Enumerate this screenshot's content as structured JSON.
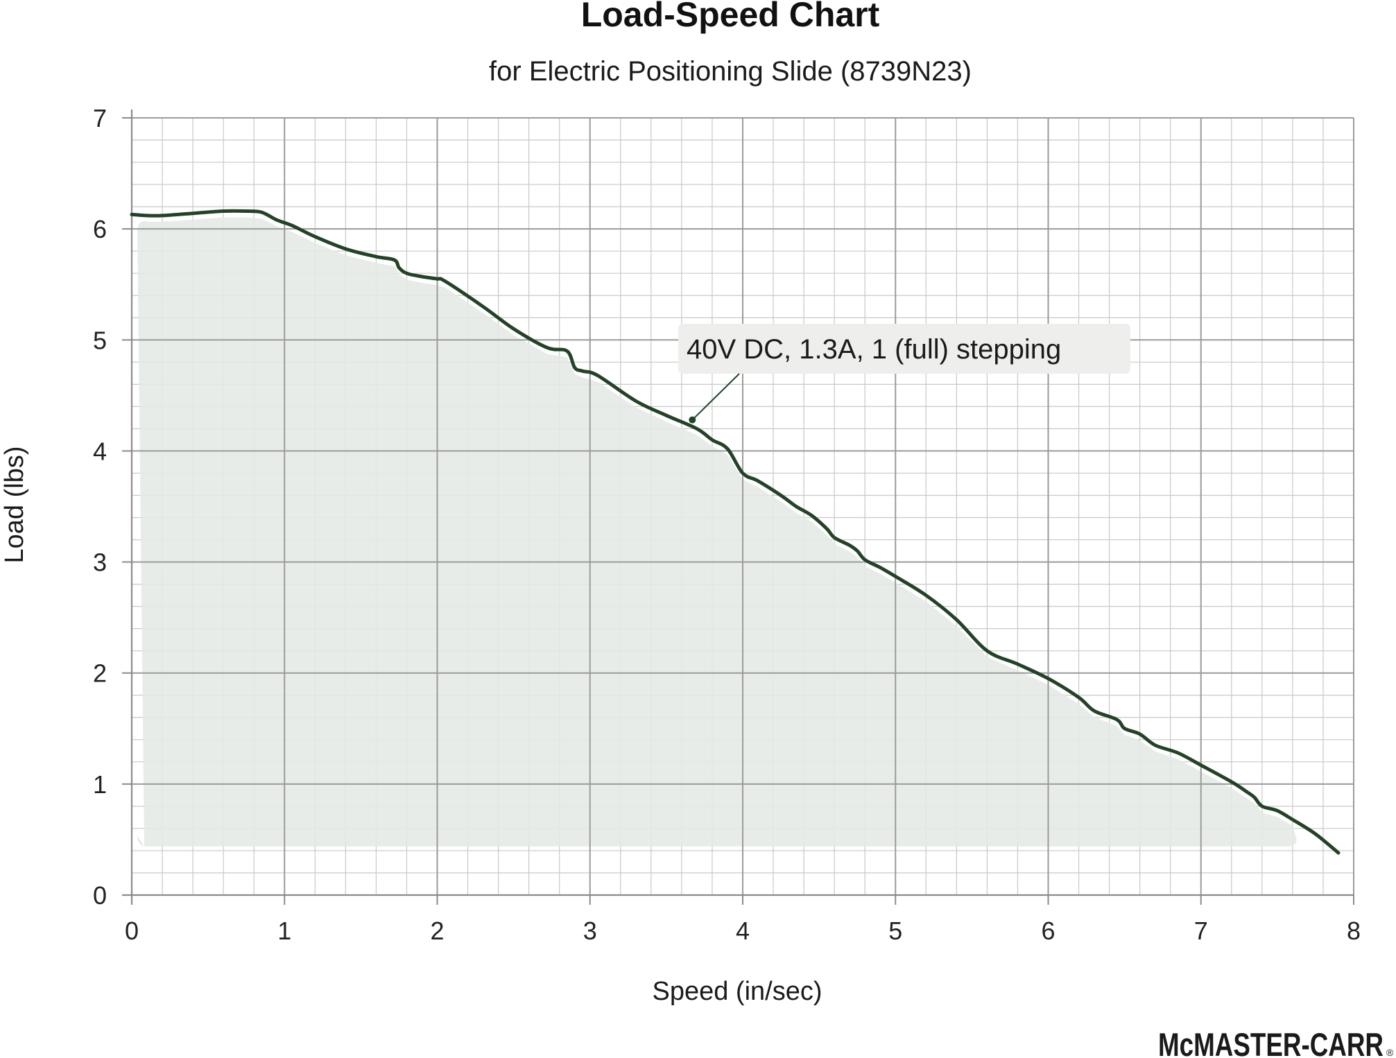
{
  "chart_data": {
    "type": "area",
    "title": "Load-Speed Chart",
    "subtitle": "for Electric Positioning Slide (8739N23)",
    "xlabel": "Speed (in/sec)",
    "ylabel": "Load (lbs)",
    "xlim": [
      0,
      8
    ],
    "ylim": [
      0,
      7
    ],
    "xticks": [
      0,
      1,
      2,
      3,
      4,
      5,
      6,
      7,
      8
    ],
    "yticks": [
      0,
      1,
      2,
      3,
      4,
      5,
      6,
      7
    ],
    "minor_grid_x_step": 0.2,
    "minor_grid_y_step": 0.2,
    "grid": true,
    "legend": "none",
    "series": [
      {
        "name": "40V DC, 1.3A, 1 (full) stepping",
        "x": [
          0,
          0.1,
          0.2,
          0.4,
          0.6,
          0.75,
          0.85,
          0.95,
          1.05,
          1.2,
          1.4,
          1.6,
          1.72,
          1.75,
          1.8,
          1.9,
          2.0,
          2.05,
          2.3,
          2.5,
          2.72,
          2.85,
          2.9,
          2.95,
          3.05,
          3.3,
          3.5,
          3.7,
          3.8,
          3.9,
          4.0,
          4.1,
          4.25,
          4.35,
          4.45,
          4.55,
          4.6,
          4.7,
          4.75,
          4.8,
          4.9,
          5.0,
          5.2,
          5.4,
          5.6,
          5.8,
          6.0,
          6.2,
          6.3,
          6.45,
          6.5,
          6.6,
          6.7,
          6.85,
          7.0,
          7.2,
          7.3,
          7.35,
          7.4,
          7.5,
          7.6,
          7.75,
          7.9
        ],
        "y": [
          6.13,
          6.12,
          6.12,
          6.14,
          6.16,
          6.16,
          6.15,
          6.08,
          6.03,
          5.93,
          5.82,
          5.75,
          5.72,
          5.65,
          5.6,
          5.57,
          5.55,
          5.53,
          5.3,
          5.1,
          4.93,
          4.9,
          4.75,
          4.72,
          4.68,
          4.45,
          4.32,
          4.2,
          4.1,
          4.02,
          3.8,
          3.73,
          3.6,
          3.5,
          3.42,
          3.3,
          3.22,
          3.15,
          3.1,
          3.02,
          2.95,
          2.87,
          2.7,
          2.48,
          2.2,
          2.08,
          1.95,
          1.78,
          1.66,
          1.58,
          1.5,
          1.45,
          1.35,
          1.28,
          1.17,
          1.02,
          0.93,
          0.88,
          0.8,
          0.76,
          0.68,
          0.55,
          0.38
        ],
        "color": "#234327"
      }
    ],
    "annotation": {
      "text": "40V DC, 1.3A, 1 (full) stepping",
      "point": [
        3.67,
        4.28
      ]
    },
    "colors": {
      "line": "#234327",
      "fill": "#e5e9e5",
      "major_grid": "#9a9a9a",
      "minor_grid": "#c8c8c8",
      "annotation_box": "#eeeeec"
    }
  },
  "brand": {
    "logo_text": "McMASTER-CARR",
    "registered_mark": "®"
  }
}
